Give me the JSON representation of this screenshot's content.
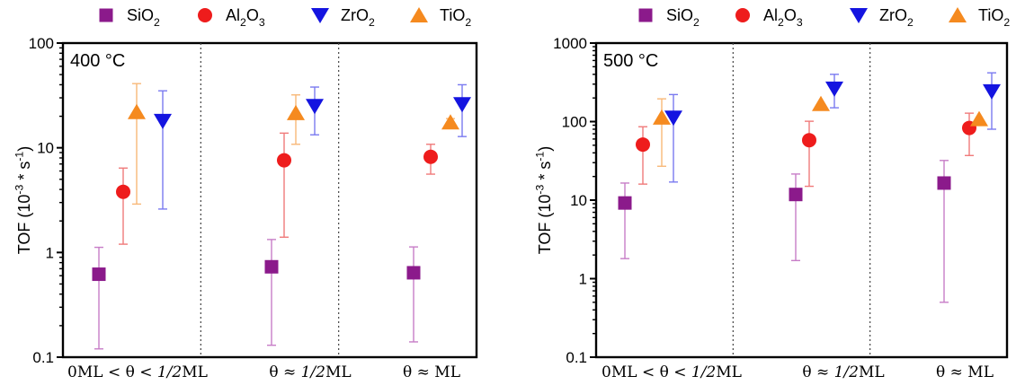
{
  "chart_data": [
    {
      "type": "scatter",
      "panel_label": "400 °C",
      "ylabel": "TOF (10<sup>-3</sup> * s<sup>-1</sup>)",
      "yscale": "log",
      "ylim": [
        0.1,
        100
      ],
      "yticks": [
        "0.1",
        "1",
        "10",
        "100"
      ],
      "categories": [
        "0ML < θ < 1/2ML",
        "θ ≈ 1/2ML",
        "θ ≈ ML"
      ],
      "series": [
        {
          "name": "SiO<sub>2</sub>",
          "marker": "square",
          "color": "#8b1a8b",
          "err_color": "#c77dc7",
          "values": [
            0.62,
            0.73,
            0.64
          ],
          "err_low": [
            0.12,
            0.13,
            0.14
          ],
          "err_high": [
            1.12,
            1.33,
            1.13
          ]
        },
        {
          "name": "Al<sub>2</sub>O<sub>3</sub>",
          "marker": "circle",
          "color": "#ee1c1c",
          "err_color": "#f07a7a",
          "values": [
            3.8,
            7.6,
            8.2
          ],
          "err_low": [
            1.2,
            1.4,
            5.6
          ],
          "err_high": [
            6.4,
            13.8,
            10.8
          ]
        },
        {
          "name": "TiO<sub>2</sub>",
          "marker": "triangle-up",
          "color": "#f58a1f",
          "err_color": "#f8b878",
          "values": [
            22,
            21.5,
            17.5
          ],
          "err_low": [
            2.9,
            10.8,
            15.5
          ],
          "err_high": [
            41,
            32,
            19
          ]
        },
        {
          "name": "ZrO<sub>2</sub>",
          "marker": "triangle-down",
          "color": "#1414e0",
          "err_color": "#7a7af0",
          "values": [
            18,
            25,
            26
          ],
          "err_low": [
            2.6,
            13.3,
            12.8
          ],
          "err_high": [
            35,
            38,
            40
          ]
        }
      ],
      "grid": false,
      "legend": "top"
    },
    {
      "type": "scatter",
      "panel_label": "500 °C",
      "ylabel": "TOF (10<sup>-3</sup> * s<sup>-1</sup>)",
      "yscale": "log",
      "ylim": [
        0.1,
        1000
      ],
      "yticks": [
        "0.1",
        "1",
        "10",
        "100",
        "1000"
      ],
      "categories": [
        "0ML < θ < 1/2ML",
        "θ ≈ 1/2ML",
        "θ ≈ ML"
      ],
      "series": [
        {
          "name": "SiO<sub>2</sub>",
          "marker": "square",
          "color": "#8b1a8b",
          "err_color": "#c77dc7",
          "values": [
            9.2,
            11.8,
            16.5
          ],
          "err_low": [
            1.8,
            1.7,
            0.5
          ],
          "err_high": [
            16.5,
            21.5,
            32
          ]
        },
        {
          "name": "Al<sub>2</sub>O<sub>3</sub>",
          "marker": "circle",
          "color": "#ee1c1c",
          "err_color": "#f07a7a",
          "values": [
            51,
            58,
            83
          ],
          "err_low": [
            16,
            15,
            37
          ],
          "err_high": [
            86,
            101,
            128
          ]
        },
        {
          "name": "TiO<sub>2</sub>",
          "marker": "triangle-up",
          "color": "#f58a1f",
          "err_color": "#f8b878",
          "values": [
            113,
            168,
            108
          ],
          "err_low": [
            27,
            168,
            108
          ],
          "err_high": [
            195,
            168,
            108
          ]
        },
        {
          "name": "ZrO<sub>2</sub>",
          "marker": "triangle-down",
          "color": "#1414e0",
          "err_color": "#7a7af0",
          "values": [
            112,
            262,
            242
          ],
          "err_low": [
            17,
            150,
            80
          ],
          "err_high": [
            221,
            400,
            418
          ]
        }
      ],
      "grid": false,
      "legend": "top"
    }
  ]
}
